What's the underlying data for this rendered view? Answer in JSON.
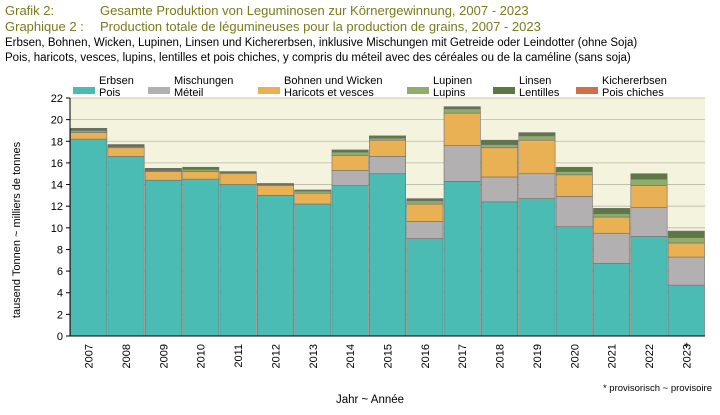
{
  "header": {
    "line1_label": "Grafik 2:",
    "line1_title": "Gesamte Produktion von Leguminosen zur Körnergewinnung, 2007 - 2023",
    "line2_label": "Graphique 2 :",
    "line2_title": "Production totale de légumineuses pour la production de grains, 2007 - 2023",
    "line3": "Erbsen, Bohnen, Wicken, Lupinen, Linsen und Kichererbsen, inklusive Mischungen mit Getreide oder Leindotter (ohne Soja)",
    "line4": "Pois, haricots, vesces, lupins, lentilles et pois chiches, y compris du méteil avec des céréales ou de la caméline (sans soja)"
  },
  "chart_data": {
    "type": "bar",
    "stacked": true,
    "categories": [
      "2007",
      "2008",
      "2009",
      "2010",
      "2011",
      "2012",
      "2013",
      "2014",
      "2015",
      "2016",
      "2017",
      "2018",
      "2019",
      "2020",
      "2021",
      "2022",
      "2023"
    ],
    "category_marks": [
      "",
      "",
      "",
      "",
      "",
      "",
      "",
      "",
      "",
      "",
      "",
      "",
      "",
      "",
      "",
      "",
      "*"
    ],
    "series": [
      {
        "name": "Erbsen\nPois",
        "color": "#4bbcb4",
        "values": [
          18.2,
          16.6,
          14.4,
          14.5,
          14.0,
          13.0,
          12.2,
          13.9,
          15.0,
          9.0,
          14.3,
          12.4,
          12.7,
          10.1,
          6.7,
          9.2,
          4.7
        ]
      },
      {
        "name": "Mischungen\nMéteil",
        "color": "#b3b0b2",
        "values": [
          0,
          0,
          0,
          0,
          0,
          0,
          0,
          1.4,
          1.6,
          1.6,
          3.3,
          2.3,
          2.3,
          2.8,
          2.8,
          2.7,
          2.6
        ]
      },
      {
        "name": "Bohnen und Wicken\nHaricots et vesces",
        "color": "#e9b054",
        "values": [
          0.6,
          0.8,
          0.8,
          0.7,
          1.0,
          0.9,
          1.0,
          1.4,
          1.5,
          1.6,
          3.0,
          2.7,
          3.1,
          2.0,
          1.5,
          2.0,
          1.3
        ]
      },
      {
        "name": "Lupinen\nLupins",
        "color": "#8fae6b",
        "values": [
          0.2,
          0.1,
          0.1,
          0.2,
          0.1,
          0.1,
          0.2,
          0.3,
          0.2,
          0.3,
          0.4,
          0.3,
          0.4,
          0.3,
          0.3,
          0.6,
          0.5
        ]
      },
      {
        "name": "Linsen\nLentilles",
        "color": "#5d7745",
        "values": [
          0.2,
          0.2,
          0.2,
          0.2,
          0.1,
          0.1,
          0.1,
          0.2,
          0.2,
          0.2,
          0.2,
          0.4,
          0.3,
          0.4,
          0.5,
          0.5,
          0.6
        ]
      },
      {
        "name": "Kichererbsen\nPois chiches",
        "color": "#d0704a",
        "values": [
          0,
          0,
          0,
          0,
          0,
          0,
          0,
          0,
          0,
          0,
          0,
          0,
          0,
          0,
          0,
          0,
          0
        ]
      }
    ],
    "ylabel": "tausend Tonnen   ~   milliers de tonnes",
    "xlabel": "Jahr   ~   Année",
    "ylim": [
      0,
      22
    ],
    "yticks": [
      0,
      2,
      4,
      6,
      8,
      10,
      12,
      14,
      16,
      18,
      20,
      22
    ],
    "grid": true,
    "legend": "top",
    "background": "#f3f3de",
    "footnote": "* provisorisch   ~   provisoire"
  }
}
